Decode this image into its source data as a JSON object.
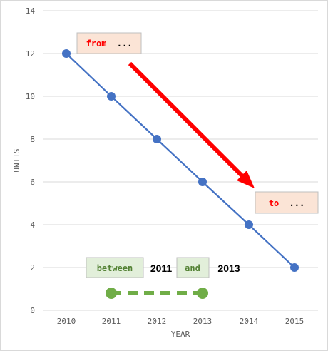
{
  "chart_data": {
    "type": "line",
    "x": [
      "2010",
      "2011",
      "2012",
      "2013",
      "2014",
      "2015"
    ],
    "values": [
      12,
      10,
      8,
      6,
      4,
      2
    ],
    "xlabel": "YEAR",
    "ylabel": "UNITS",
    "ylim": [
      0,
      14
    ],
    "yticks": [
      0,
      2,
      4,
      6,
      8,
      10,
      12,
      14
    ],
    "grid": true,
    "series_color": "#4472c4",
    "annotations": {
      "from_label": "from",
      "from_suffix": "...",
      "to_label": "to",
      "to_suffix": "...",
      "between_label": "between",
      "and_label": "and",
      "start_year": "2011",
      "end_year": "2013",
      "arrow_color": "#ff0000",
      "range_line": {
        "x_start": "2011",
        "x_end": "2013",
        "y": 0.8,
        "color": "#70ad47"
      },
      "box_fill_red": "#fbe4d6",
      "box_fill_green": "#e2efda",
      "red_text": "#ff0000",
      "green_text": "#548235"
    }
  }
}
